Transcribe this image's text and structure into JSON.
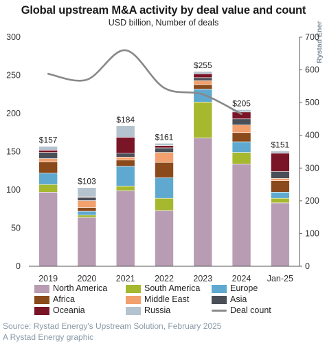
{
  "header": {
    "title": "Global upstream M&A activity by deal value and count",
    "subtitle": "USD billion, Number of deals",
    "brand": "Rystad Energy"
  },
  "footer": {
    "source": "Source: Rystad Energy's Upstream Solution, February 2025",
    "credit": "A Rystad Energy graphic"
  },
  "colors": {
    "North America": "#b79cb3",
    "South America": "#a6b82e",
    "Europe": "#5fa9d0",
    "Africa": "#8b4a1c",
    "Middle East": "#f2a06e",
    "Asia": "#4a4f58",
    "Oceania": "#7a1427",
    "Russia": "#b4c3ce",
    "Deal count": "#888888"
  },
  "chart_data": {
    "type": "bar",
    "stacked": true,
    "categories": [
      "2019",
      "2020",
      "2021",
      "2022",
      "2023",
      "2024",
      "Jan-25"
    ],
    "series": [
      {
        "name": "North America",
        "values": [
          97,
          64,
          99,
          73,
          168,
          134,
          83
        ]
      },
      {
        "name": "South America",
        "values": [
          10,
          3,
          6,
          16,
          47,
          15,
          6
        ]
      },
      {
        "name": "Europe",
        "values": [
          15,
          5,
          26,
          27,
          17,
          14,
          8
        ]
      },
      {
        "name": "Africa",
        "values": [
          15,
          5,
          8,
          20,
          6,
          12,
          15
        ]
      },
      {
        "name": "Middle East",
        "values": [
          4,
          9,
          4,
          13,
          5,
          10,
          3
        ]
      },
      {
        "name": "Asia",
        "values": [
          8,
          4,
          5,
          6,
          4,
          8,
          9
        ]
      },
      {
        "name": "Oceania",
        "values": [
          3,
          1,
          21,
          3,
          5,
          9,
          24
        ]
      },
      {
        "name": "Russia",
        "values": [
          5,
          12,
          15,
          3,
          3,
          3,
          3
        ]
      }
    ],
    "totals": [
      "$157",
      "$103",
      "$184",
      "$161",
      "$255",
      "$205",
      "$151"
    ],
    "line": {
      "name": "Deal count",
      "axis": "right",
      "x": [
        "2019",
        "2020",
        "2021",
        "2022",
        "2023",
        "2024"
      ],
      "values": [
        588,
        570,
        660,
        545,
        525,
        465
      ]
    },
    "ylim": [
      0,
      300
    ],
    "yticks": [
      0,
      50,
      100,
      150,
      200,
      250,
      300
    ],
    "y2lim": [
      0,
      700
    ],
    "y2ticks": [
      0,
      100,
      200,
      300,
      400,
      500,
      600,
      700
    ],
    "legend": {
      "position": "bottom",
      "items": [
        "North America",
        "South America",
        "Europe",
        "Africa",
        "Middle East",
        "Asia",
        "Oceania",
        "Russia",
        "Deal count"
      ]
    }
  }
}
